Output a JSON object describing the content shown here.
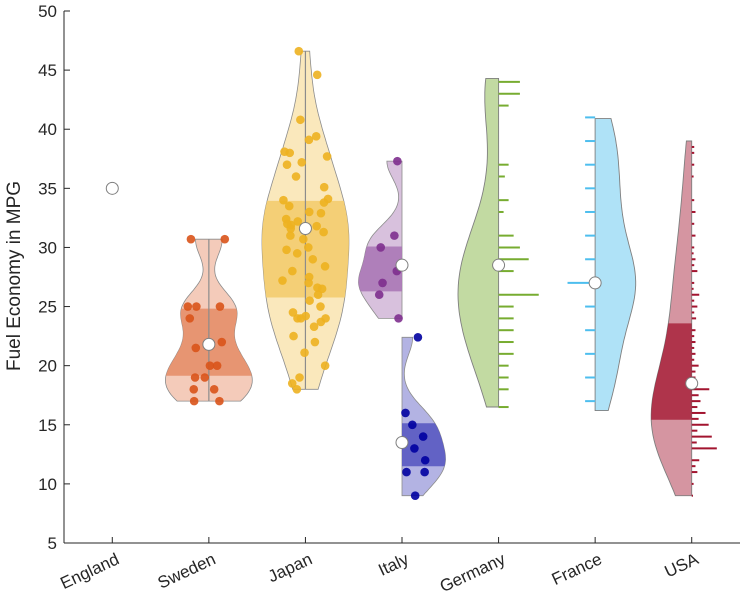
{
  "chart_data": {
    "type": "violin",
    "title": "",
    "xlabel": "",
    "ylabel": "Fuel Economy in MPG",
    "ylim": [
      5,
      50
    ],
    "yticks": [
      5,
      10,
      15,
      20,
      25,
      30,
      35,
      40,
      45,
      50
    ],
    "categories": [
      "England",
      "Sweden",
      "Japan",
      "Italy",
      "Germany",
      "France",
      "USA"
    ],
    "groups": [
      {
        "name": "England",
        "color": "#ffffff",
        "style": "point-only",
        "median": 35
      },
      {
        "name": "Sweden",
        "color": "#D95319",
        "style": "violin-scatter",
        "median": 21.8,
        "range": [
          17,
          30.7
        ],
        "q1": 19,
        "q3": 25,
        "points": [
          30.7,
          30.7,
          25,
          25,
          25,
          24,
          22,
          21.5,
          20,
          20,
          19,
          19,
          18,
          18,
          17,
          17
        ]
      },
      {
        "name": "Japan",
        "color": "#EDB120",
        "style": "violin-scatter",
        "median": 31.6,
        "range": [
          18,
          46.6
        ],
        "q1": 25.6,
        "q3": 34,
        "points": [
          46.6,
          44.6,
          40.8,
          39.4,
          39.1,
          38.1,
          38,
          37.7,
          37.2,
          37,
          36,
          35.1,
          34.1,
          34,
          33.8,
          33.5,
          33,
          32.9,
          32.4,
          32.2,
          32,
          31.9,
          31.8,
          31.6,
          31.3,
          31,
          30.7,
          30,
          29.8,
          29.5,
          29,
          28.4,
          28,
          27.5,
          27.2,
          27,
          26.6,
          26.5,
          26,
          25.5,
          25,
          24.5,
          24.2,
          24,
          24,
          24,
          23.7,
          23.3,
          22.5,
          22,
          21.1,
          20,
          19,
          18.5,
          18
        ]
      },
      {
        "name": "Italy",
        "color": "#7E2F8E",
        "style": "half-violin-scatter",
        "side": "left",
        "median": 28.5,
        "range": [
          24,
          37.3
        ],
        "q1": 26.2,
        "q3": 30.2,
        "points": [
          37.3,
          31,
          30,
          28,
          27,
          26,
          24
        ]
      },
      {
        "name": "Italy (lower group)",
        "color": "#0000A0",
        "style": "half-violin-scatter",
        "side": "right",
        "median": 13.5,
        "range": [
          9,
          22.4
        ],
        "q1": 11.4,
        "q3": 15.3,
        "points": [
          22.4,
          16,
          15,
          14,
          13,
          12,
          11,
          11,
          9
        ]
      },
      {
        "name": "Germany",
        "color": "#77AC30",
        "style": "half-violin-histogram",
        "side": "left",
        "median": 28.5,
        "range": [
          16.5,
          44.3
        ],
        "histogram": [
          [
            44,
            1.7
          ],
          [
            43,
            1.7
          ],
          [
            42,
            0.8
          ],
          [
            37,
            0.8
          ],
          [
            36,
            0.5
          ],
          [
            34,
            0.8
          ],
          [
            33,
            0.4
          ],
          [
            31,
            1.2
          ],
          [
            30,
            1.7
          ],
          [
            29,
            2.4
          ],
          [
            28,
            1.2
          ],
          [
            26,
            3.2
          ],
          [
            25,
            1.2
          ],
          [
            24,
            1.2
          ],
          [
            23,
            1.2
          ],
          [
            22,
            1.2
          ],
          [
            21,
            1.2
          ],
          [
            20,
            0.8
          ],
          [
            19,
            0.8
          ],
          [
            18,
            0.8
          ],
          [
            16.5,
            0.8
          ]
        ]
      },
      {
        "name": "France",
        "color": "#4DBEEE",
        "style": "half-violin-histogram",
        "side": "right",
        "median": 27,
        "range": [
          16.2,
          40.9
        ],
        "histogram": [
          [
            41,
            0.8
          ],
          [
            39,
            0.8
          ],
          [
            37,
            0.8
          ],
          [
            35,
            0.8
          ],
          [
            33,
            0.8
          ],
          [
            31,
            0.8
          ],
          [
            29,
            0.8
          ],
          [
            27,
            2.2
          ],
          [
            25,
            0.8
          ],
          [
            23,
            0.8
          ],
          [
            21,
            0.8
          ],
          [
            19,
            0.8
          ],
          [
            17,
            0.8
          ]
        ]
      },
      {
        "name": "USA",
        "color": "#A2142F",
        "style": "half-violin-histogram",
        "side": "left",
        "median": 18.5,
        "range": [
          9,
          39
        ],
        "q1": 15.4,
        "q3": 23.7,
        "histogram": [
          [
            38.5,
            0.2
          ],
          [
            38,
            0.2
          ],
          [
            37,
            0.2
          ],
          [
            36,
            0.15
          ],
          [
            34,
            0.2
          ],
          [
            33,
            0.3
          ],
          [
            32,
            0.2
          ],
          [
            31,
            0.3
          ],
          [
            30,
            0.2
          ],
          [
            29.5,
            0.15
          ],
          [
            29,
            0.3
          ],
          [
            28.5,
            0.2
          ],
          [
            28,
            0.45
          ],
          [
            27,
            0.2
          ],
          [
            26.5,
            0.15
          ],
          [
            26,
            0.6
          ],
          [
            25.5,
            0.2
          ],
          [
            25,
            0.45
          ],
          [
            24.5,
            0.2
          ],
          [
            24,
            0.35
          ],
          [
            23,
            0.3
          ],
          [
            22.5,
            0.2
          ],
          [
            22,
            0.3
          ],
          [
            21.5,
            0.2
          ],
          [
            21,
            0.3
          ],
          [
            20.5,
            0.2
          ],
          [
            20,
            0.55
          ],
          [
            19.5,
            0.3
          ],
          [
            19,
            0.3
          ],
          [
            18.5,
            0.45
          ],
          [
            18,
            1.4
          ],
          [
            17.5,
            0.55
          ],
          [
            17,
            0.7
          ],
          [
            16.5,
            0.45
          ],
          [
            16,
            1.1
          ],
          [
            15.5,
            0.55
          ],
          [
            15,
            1.35
          ],
          [
            14.5,
            0.45
          ],
          [
            14,
            1.6
          ],
          [
            13.5,
            0.4
          ],
          [
            13,
            2.0
          ],
          [
            12,
            0.6
          ],
          [
            11.5,
            0.3
          ],
          [
            11,
            0.45
          ],
          [
            10,
            0.15
          ],
          [
            9,
            0.1
          ]
        ]
      }
    ]
  }
}
